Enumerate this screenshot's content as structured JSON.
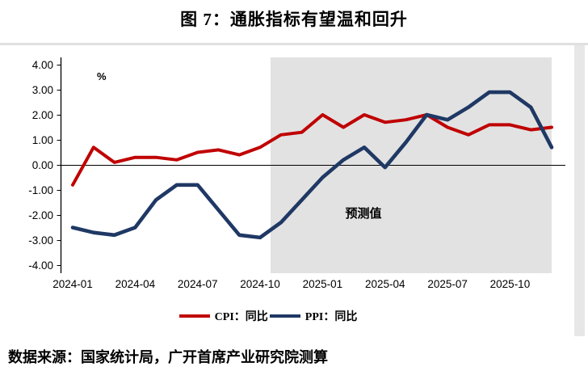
{
  "title": "图 7：通胀指标有望温和回升",
  "source": "数据来源：国家统计局，广开首席产业研究院测算",
  "chart_data": {
    "type": "line",
    "title": "图 7：通胀指标有望温和回升",
    "ylabel": "%",
    "ylim": [
      -4,
      4
    ],
    "grid": false,
    "legend_position": "bottom",
    "y_ticks": [
      "4.00",
      "3.00",
      "2.00",
      "1.00",
      "0.00",
      "-1.00",
      "-2.00",
      "-3.00",
      "-4.00"
    ],
    "x": [
      "2024-01",
      "2024-02",
      "2024-03",
      "2024-04",
      "2024-05",
      "2024-06",
      "2024-07",
      "2024-08",
      "2024-09",
      "2024-10",
      "2024-11",
      "2024-12",
      "2025-01",
      "2025-02",
      "2025-03",
      "2025-04",
      "2025-05",
      "2025-06",
      "2025-07",
      "2025-08",
      "2025-09",
      "2025-10",
      "2025-11",
      "2025-12"
    ],
    "x_tick_every": 3,
    "series": [
      {
        "name": "CPI：同比",
        "color": "#c00000",
        "values": [
          -0.8,
          0.7,
          0.1,
          0.3,
          0.3,
          0.2,
          0.5,
          0.6,
          0.4,
          0.7,
          1.2,
          1.3,
          2.0,
          1.5,
          2.0,
          1.7,
          1.8,
          2.0,
          1.5,
          1.2,
          1.6,
          1.6,
          1.4,
          1.5
        ]
      },
      {
        "name": "PPI：同比",
        "color": "#1f3864",
        "values": [
          -2.5,
          -2.7,
          -2.8,
          -2.5,
          -1.4,
          -0.8,
          -0.8,
          -1.8,
          -2.8,
          -2.9,
          -2.3,
          -1.4,
          -0.5,
          0.2,
          0.7,
          -0.1,
          0.9,
          2.0,
          1.8,
          2.3,
          2.9,
          2.9,
          2.3,
          0.7
        ]
      }
    ],
    "forecast": {
      "label": "预测值",
      "starts_at": "2024-11",
      "ends_at": "2025-12",
      "fill": "#e2e2e2"
    }
  }
}
